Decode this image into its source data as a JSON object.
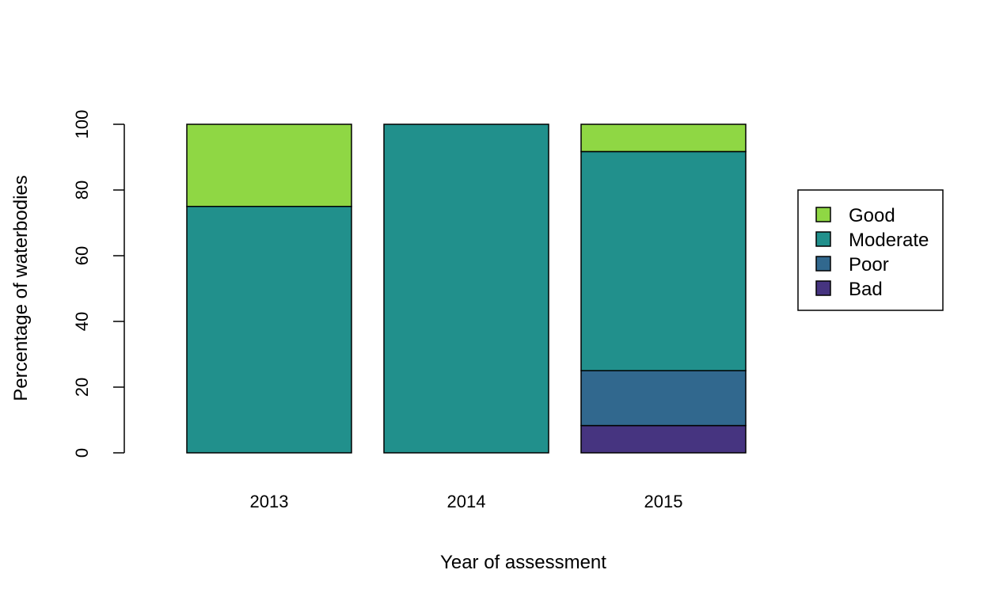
{
  "chart_data": {
    "type": "bar",
    "stacked": true,
    "title": "",
    "xlabel": "Year of assessment",
    "ylabel": "Percentage of waterbodies",
    "categories": [
      "2013",
      "2014",
      "2015"
    ],
    "ylim": [
      0,
      100
    ],
    "yticks": [
      "0",
      "20",
      "40",
      "60",
      "80",
      "100"
    ],
    "grid": false,
    "legend_position": "right",
    "series": [
      {
        "name": "Bad",
        "color": "#463480",
        "values": [
          0,
          0,
          8.3
        ]
      },
      {
        "name": "Poor",
        "color": "#31688E",
        "values": [
          0,
          0,
          16.7
        ]
      },
      {
        "name": "Moderate",
        "color": "#21908C",
        "values": [
          75,
          100,
          66.7
        ]
      },
      {
        "name": "Good",
        "color": "#8FD744",
        "values": [
          25,
          0,
          8.3
        ]
      }
    ],
    "legend_order": [
      "Good",
      "Moderate",
      "Poor",
      "Bad"
    ]
  }
}
